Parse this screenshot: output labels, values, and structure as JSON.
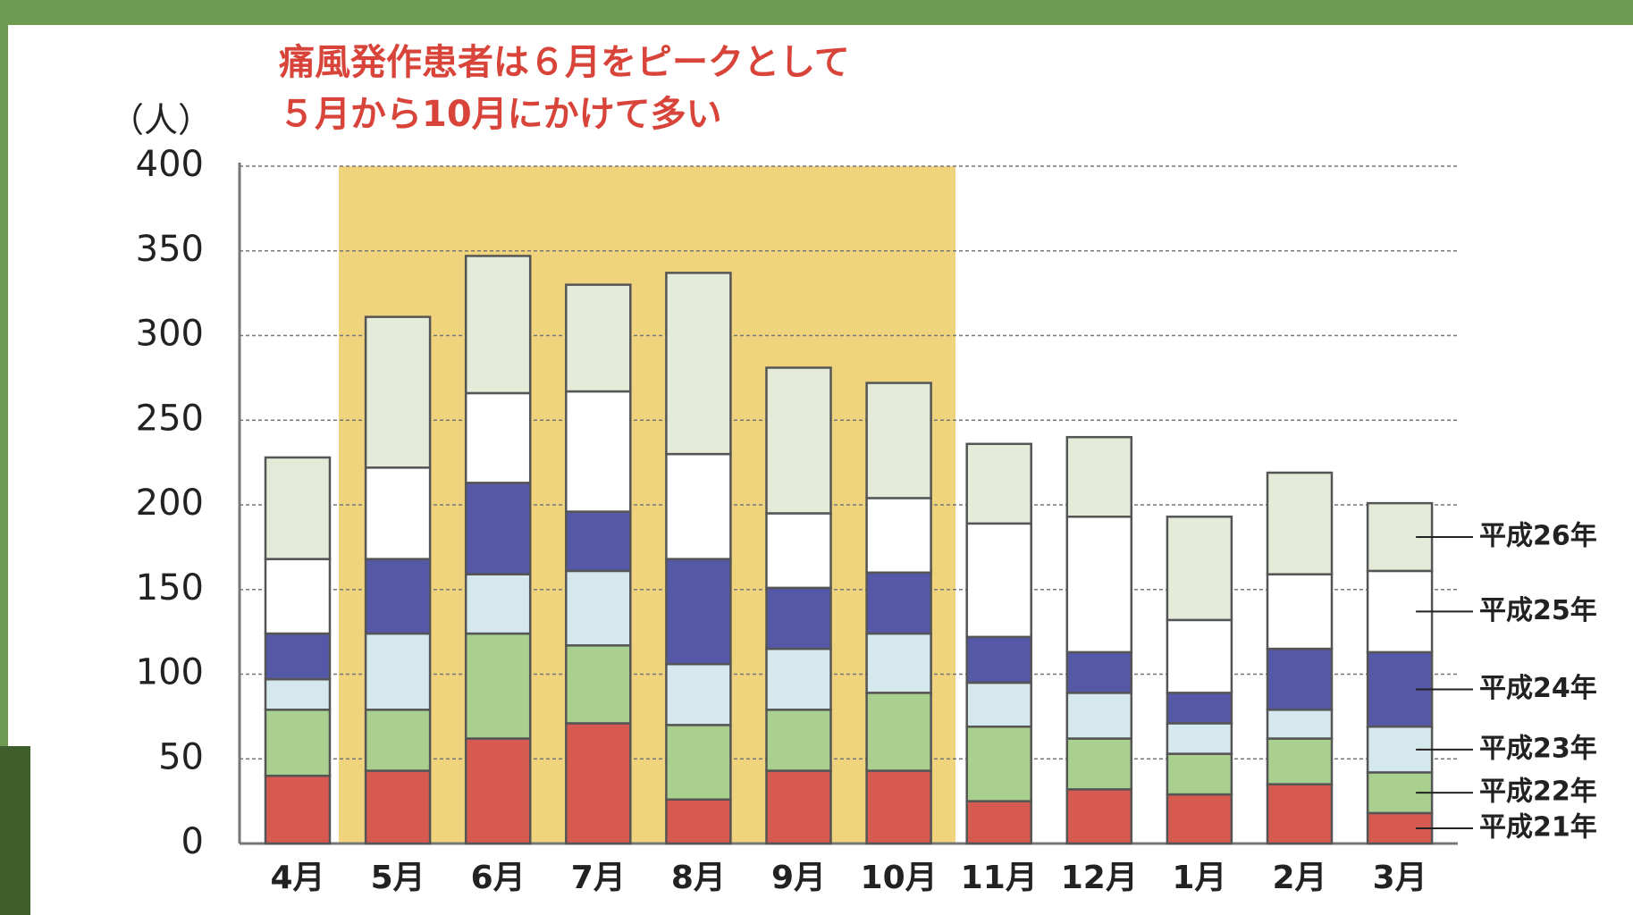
{
  "chart_data": {
    "type": "stacked_bar",
    "title_lines": [
      "痛風発作患者は６月をピークとして",
      "５月から10月にかけて多い"
    ],
    "y_unit": "（人）",
    "categories": [
      "4月",
      "5月",
      "6月",
      "7月",
      "8月",
      "9月",
      "10月",
      "11月",
      "12月",
      "1月",
      "2月",
      "3月"
    ],
    "series": [
      {
        "name": "平成21年",
        "color": "#d65a50",
        "values": [
          40,
          43,
          62,
          71,
          26,
          43,
          43,
          25,
          32,
          29,
          35,
          18
        ]
      },
      {
        "name": "平成22年",
        "color": "#a9d08f",
        "values": [
          39,
          36,
          62,
          46,
          44,
          36,
          46,
          44,
          30,
          24,
          27,
          24
        ]
      },
      {
        "name": "平成23年",
        "color": "#d5e8ee",
        "values": [
          18,
          45,
          35,
          44,
          36,
          36,
          35,
          26,
          27,
          18,
          17,
          27
        ]
      },
      {
        "name": "平成24年",
        "color": "#5558a6",
        "values": [
          27,
          44,
          54,
          35,
          62,
          36,
          36,
          27,
          24,
          18,
          36,
          44
        ]
      },
      {
        "name": "平成25年",
        "color": "#ffffff",
        "values": [
          44,
          54,
          53,
          71,
          62,
          44,
          44,
          67,
          80,
          43,
          44,
          48
        ]
      },
      {
        "name": "平成26年",
        "color": "#e4ebd9",
        "values": [
          60,
          89,
          81,
          63,
          107,
          86,
          68,
          47,
          47,
          61,
          60,
          40
        ]
      }
    ],
    "ylim": [
      0,
      400
    ],
    "yticks": [
      0,
      50,
      100,
      150,
      200,
      250,
      300,
      350,
      400
    ],
    "grid": true
  }
}
